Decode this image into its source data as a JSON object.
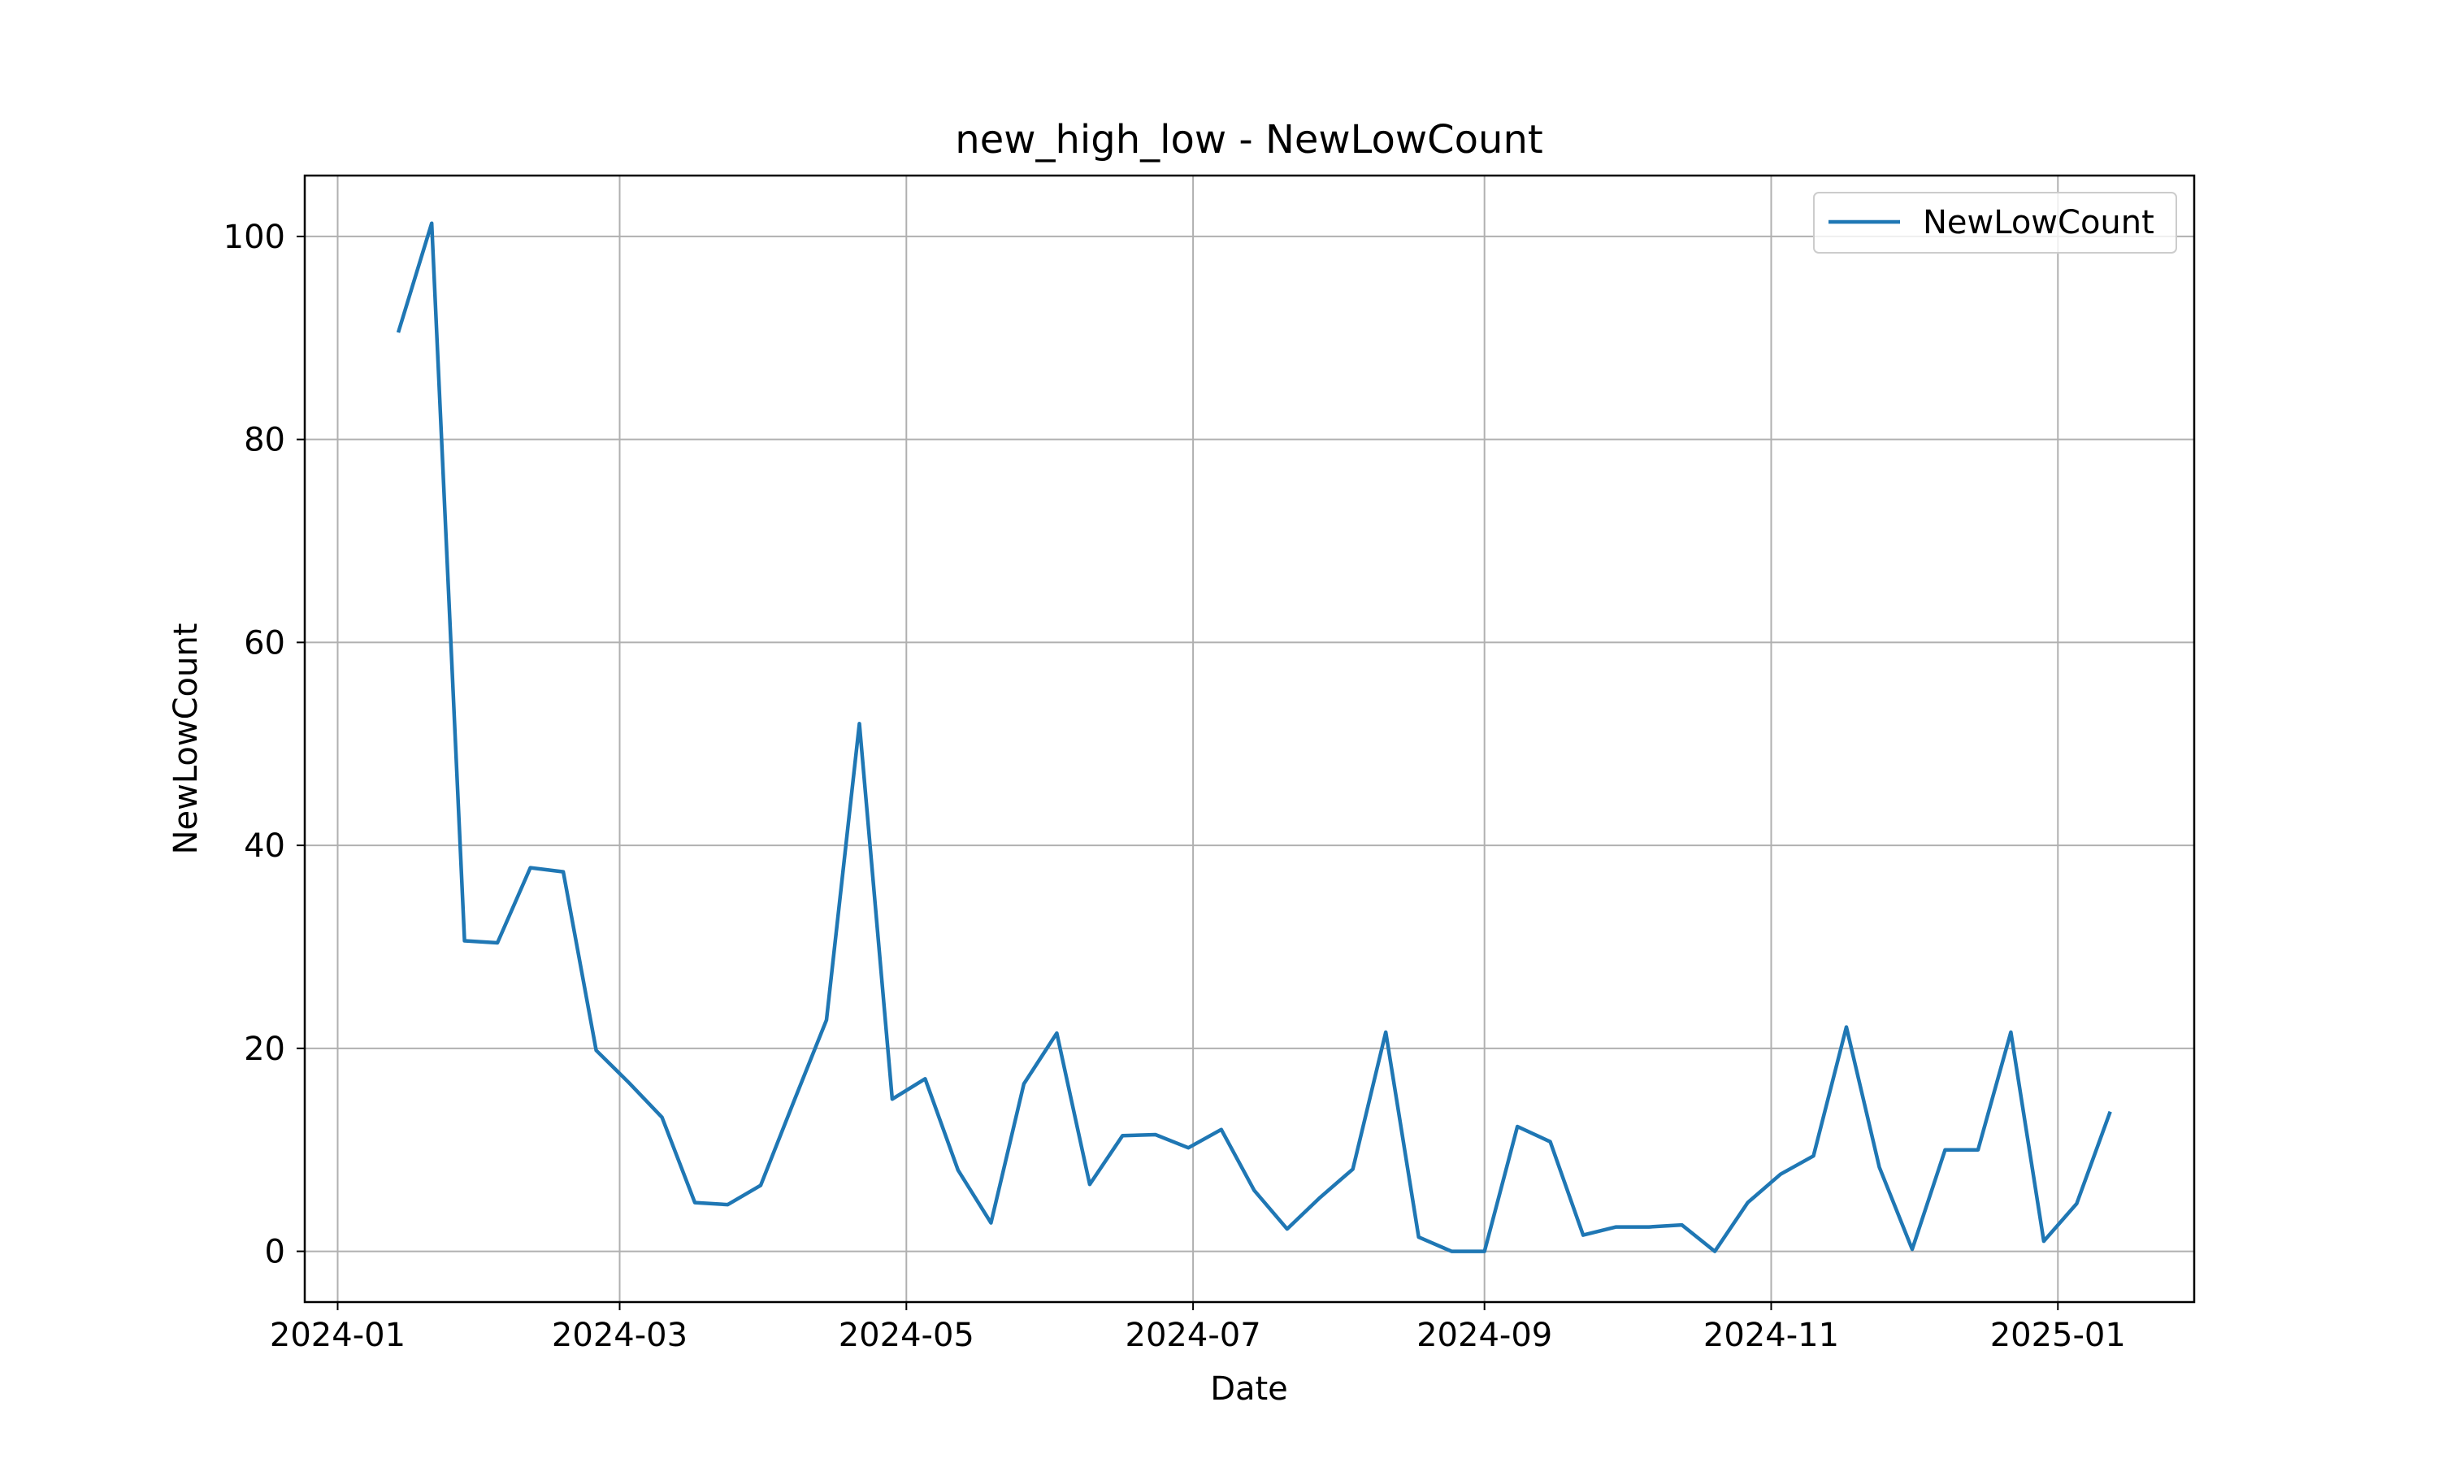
{
  "chart_data": {
    "type": "line",
    "title": "new_high_low - NewLowCount",
    "xlabel": "Date",
    "ylabel": "NewLowCount",
    "x_axis_type": "date",
    "xlim": [
      "2023-12-25",
      "2025-01-30"
    ],
    "ylim": [
      -5,
      106
    ],
    "x_ticks": [
      "2024-01-01",
      "2024-03-01",
      "2024-05-01",
      "2024-07-01",
      "2024-09-01",
      "2024-11-01",
      "2025-01-01"
    ],
    "x_tick_labels": [
      "2024-01",
      "2024-03",
      "2024-05",
      "2024-07",
      "2024-09",
      "2024-11",
      "2025-01"
    ],
    "y_ticks": [
      0,
      20,
      40,
      60,
      80,
      100
    ],
    "y_tick_labels": [
      "0",
      "20",
      "40",
      "60",
      "80",
      "100"
    ],
    "grid": true,
    "legend_position": "upper-right",
    "series": [
      {
        "name": "NewLowCount",
        "color": "#1f77b4",
        "x": [
          "2024-01-14",
          "2024-01-21",
          "2024-01-28",
          "2024-02-04",
          "2024-02-11",
          "2024-02-18",
          "2024-02-25",
          "2024-03-03",
          "2024-03-10",
          "2024-03-17",
          "2024-03-24",
          "2024-03-31",
          "2024-04-07",
          "2024-04-14",
          "2024-04-21",
          "2024-04-28",
          "2024-05-05",
          "2024-05-12",
          "2024-05-19",
          "2024-05-26",
          "2024-06-02",
          "2024-06-09",
          "2024-06-16",
          "2024-06-23",
          "2024-06-30",
          "2024-07-07",
          "2024-07-14",
          "2024-07-21",
          "2024-07-28",
          "2024-08-04",
          "2024-08-11",
          "2024-08-18",
          "2024-08-25",
          "2024-09-01",
          "2024-09-08",
          "2024-09-15",
          "2024-09-22",
          "2024-09-29",
          "2024-10-06",
          "2024-10-13",
          "2024-10-20",
          "2024-10-27",
          "2024-11-03",
          "2024-11-10",
          "2024-11-17",
          "2024-11-24",
          "2024-12-01",
          "2024-12-08",
          "2024-12-15",
          "2024-12-22",
          "2024-12-29",
          "2025-01-05",
          "2025-01-12"
        ],
        "values": [
          90.7,
          101.3,
          30.6,
          30.4,
          37.8,
          37.4,
          19.8,
          16.6,
          13.2,
          4.8,
          4.6,
          6.5,
          14.7,
          22.8,
          52.0,
          15.0,
          17.0,
          8.0,
          2.8,
          16.5,
          21.5,
          6.6,
          11.4,
          11.5,
          10.2,
          12.0,
          6.0,
          2.2,
          5.3,
          8.1,
          21.6,
          1.4,
          0.0,
          0.0,
          12.3,
          10.8,
          1.6,
          2.4,
          2.4,
          2.6,
          0.0,
          4.8,
          7.6,
          9.4,
          22.1,
          8.3,
          0.2,
          10.0,
          10.0,
          21.6,
          1.0,
          4.7,
          13.6
        ]
      }
    ]
  }
}
